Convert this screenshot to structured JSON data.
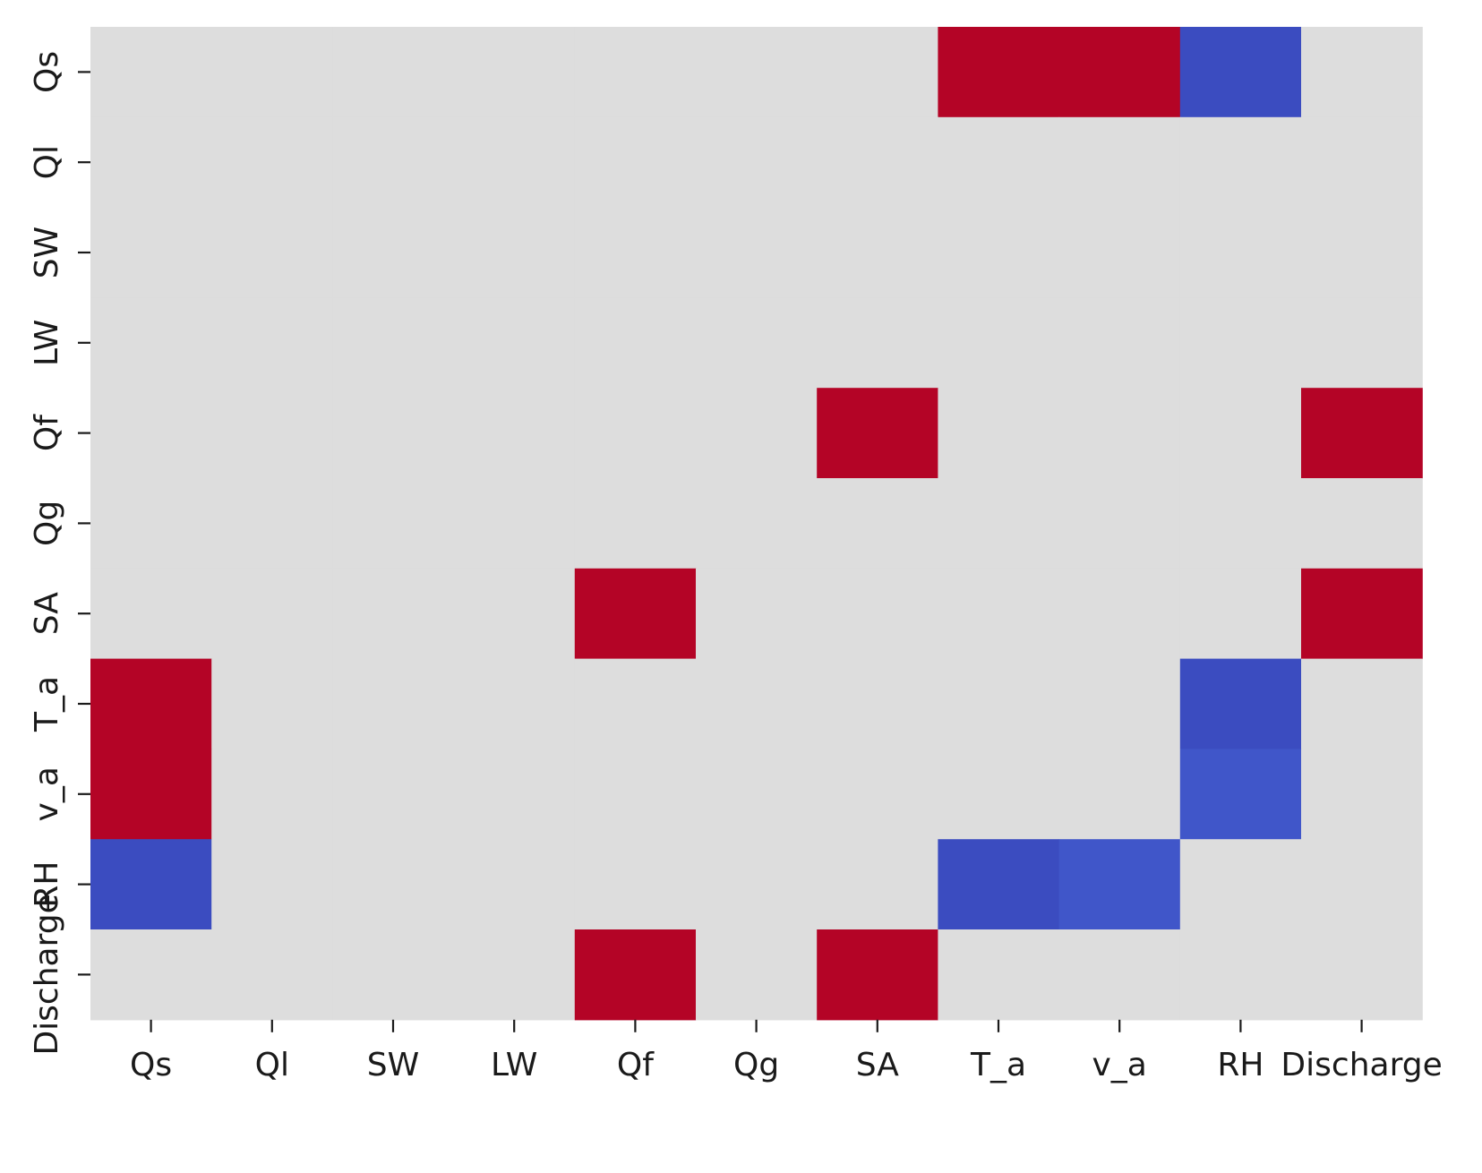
{
  "chart_data": {
    "type": "heatmap",
    "title": "",
    "xlabel": "",
    "ylabel": "",
    "x_categories": [
      "Qs",
      "Ql",
      "SW",
      "LW",
      "Qf",
      "Qg",
      "SA",
      "T_a",
      "v_a",
      "RH",
      "Discharge"
    ],
    "y_categories": [
      "Qs",
      "Ql",
      "SW",
      "LW",
      "Qf",
      "Qg",
      "SA",
      "T_a",
      "v_a",
      "RH",
      "Discharge"
    ],
    "values": [
      [
        0,
        0,
        0,
        0,
        0,
        0,
        0,
        1,
        1,
        -1,
        0
      ],
      [
        0,
        0,
        0,
        0,
        0,
        0,
        0,
        0,
        0,
        0,
        0
      ],
      [
        0,
        0,
        0,
        0,
        0,
        0,
        0,
        0,
        0,
        0,
        0
      ],
      [
        0,
        0,
        0,
        0,
        0,
        0,
        0,
        0,
        0,
        0,
        0
      ],
      [
        0,
        0,
        0,
        0,
        0,
        0,
        1,
        0,
        0,
        0,
        1
      ],
      [
        0,
        0,
        0,
        0,
        0,
        0,
        0,
        0,
        0,
        0,
        0
      ],
      [
        0,
        0,
        0,
        0,
        1,
        0,
        0,
        0,
        0,
        0,
        1
      ],
      [
        1,
        0,
        0,
        0,
        0,
        0,
        0,
        0,
        0,
        -1,
        0
      ],
      [
        1,
        0,
        0,
        0,
        0,
        0,
        0,
        0,
        0,
        -0.95,
        0
      ],
      [
        -1,
        0,
        0,
        0,
        0,
        0,
        0,
        -1,
        -0.95,
        0,
        0
      ],
      [
        0,
        0,
        0,
        0,
        1,
        0,
        1,
        0,
        0,
        0,
        0
      ]
    ],
    "colormap": "coolwarm",
    "value_range": [
      -1,
      1
    ],
    "colors": {
      "positive": "#b40426",
      "negative": "#3b4cc0",
      "neutral": "#dddddd"
    },
    "colorbar": false,
    "grid": false
  }
}
